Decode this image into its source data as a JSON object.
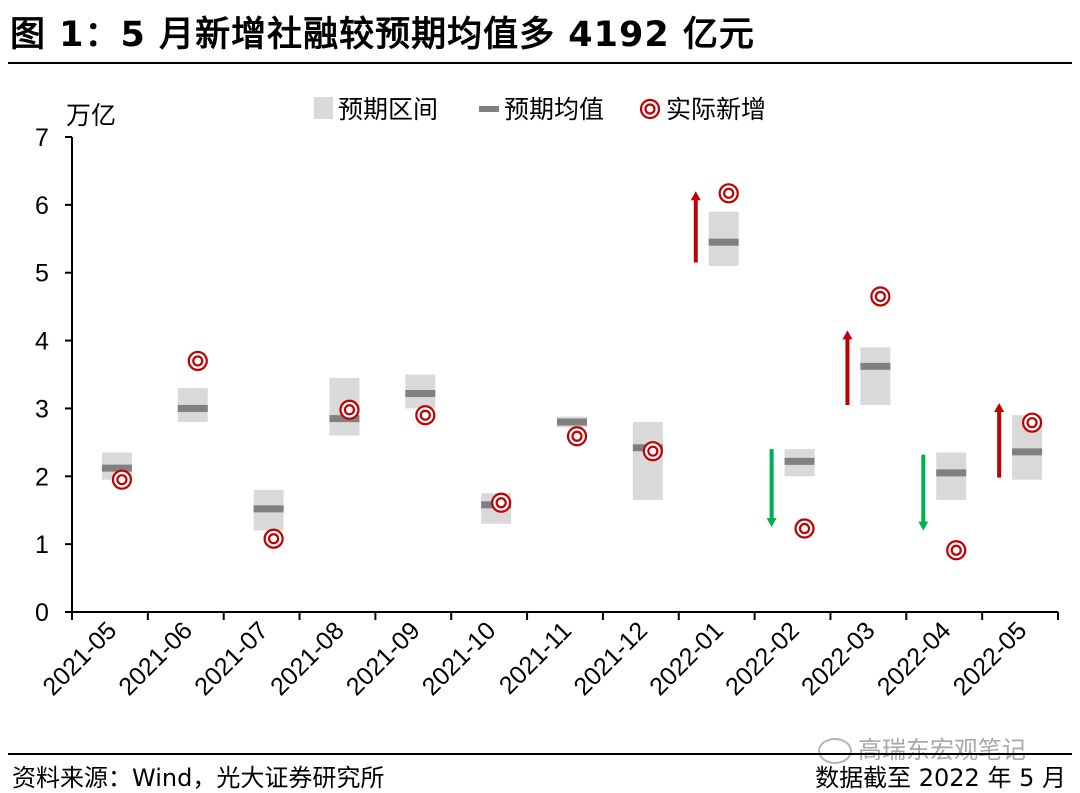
{
  "title": "图 1：5 月新增社融较预期均值多 4192 亿元",
  "source": "资料来源：Wind，光大证券研究所",
  "date_cut": "数据截至 2022 年 5 月",
  "watermark": "高瑞东宏观笔记",
  "colors": {
    "range": "#d9d9d9",
    "mean": "#808080",
    "actual": "#c00000",
    "up_arrow": "#c00000",
    "down_arrow": "#00b050",
    "axis": "#000000"
  },
  "chart_data": {
    "type": "scatter",
    "title": "5 月新增社融较预期均值多 4192 亿元",
    "ylabel": "万亿",
    "xlabel": "",
    "ylim": [
      0,
      7
    ],
    "yticks": [
      "0",
      "1",
      "2",
      "3",
      "4",
      "5",
      "6",
      "7"
    ],
    "categories": [
      "2021-05",
      "2021-06",
      "2021-07",
      "2021-08",
      "2021-09",
      "2021-10",
      "2021-11",
      "2021-12",
      "2022-01",
      "2022-02",
      "2022-03",
      "2022-04",
      "2022-05"
    ],
    "legend": {
      "range_label": "预期区间",
      "mean_label": "预期均值",
      "actual_label": "实际新增"
    },
    "series": [
      {
        "name": "预期区间",
        "low": [
          1.95,
          2.8,
          1.2,
          2.6,
          3.0,
          1.3,
          2.72,
          1.65,
          5.1,
          2.0,
          3.05,
          1.65,
          1.95
        ],
        "high": [
          2.35,
          3.3,
          1.8,
          3.45,
          3.5,
          1.75,
          2.88,
          2.8,
          5.9,
          2.4,
          3.9,
          2.35,
          2.9
        ]
      },
      {
        "name": "预期均值",
        "values": [
          2.12,
          3.0,
          1.52,
          2.85,
          3.22,
          1.58,
          2.8,
          2.42,
          5.45,
          2.22,
          3.62,
          2.05,
          2.36
        ]
      },
      {
        "name": "实际新增",
        "values": [
          1.95,
          3.7,
          1.08,
          2.98,
          2.9,
          1.61,
          2.59,
          2.37,
          6.17,
          1.23,
          4.65,
          0.91,
          2.79
        ]
      }
    ],
    "arrows": [
      {
        "category": "2022-01",
        "direction": "up",
        "from": 5.15,
        "to": 6.2
      },
      {
        "category": "2022-02",
        "direction": "down",
        "from": 2.4,
        "to": 1.25
      },
      {
        "category": "2022-03",
        "direction": "up",
        "from": 3.05,
        "to": 4.15
      },
      {
        "category": "2022-04",
        "direction": "down",
        "from": 2.32,
        "to": 1.2
      },
      {
        "category": "2022-05",
        "direction": "up",
        "from": 1.98,
        "to": 3.08
      }
    ],
    "legend_position": "top-center",
    "grid": false
  }
}
